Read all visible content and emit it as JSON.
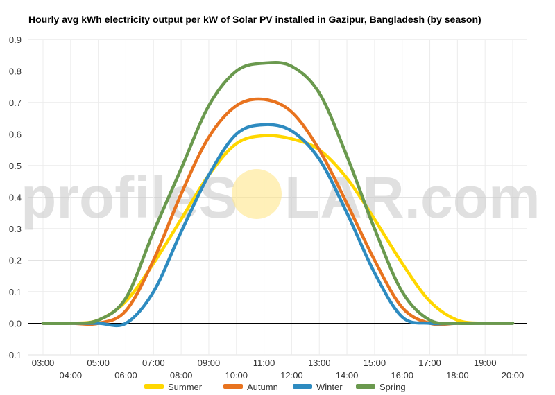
{
  "chart_data": {
    "type": "line",
    "title": "Hourly avg kWh electricity output per kW of Solar PV installed in Gazipur, Bangladesh (by season)",
    "xlabel": "",
    "ylabel": "",
    "categories": [
      "03:00",
      "04:00",
      "05:00",
      "06:00",
      "07:00",
      "08:00",
      "09:00",
      "10:00",
      "11:00",
      "12:00",
      "13:00",
      "14:00",
      "15:00",
      "16:00",
      "17:00",
      "18:00",
      "19:00",
      "20:00"
    ],
    "ylim": [
      -0.1,
      0.9
    ],
    "yticks": [
      -0.1,
      0.0,
      0.1,
      0.2,
      0.3,
      0.4,
      0.5,
      0.6,
      0.7,
      0.8,
      0.9
    ],
    "ytick_labels": [
      "-0.1",
      "0.0",
      "0.1",
      "0.2",
      "0.3",
      "0.4",
      "0.5",
      "0.6",
      "0.7",
      "0.8",
      "0.9"
    ],
    "grid": true,
    "legend_position": "bottom",
    "series": [
      {
        "name": "Summer",
        "color": "#FFD700",
        "values": [
          0,
          0,
          0.01,
          0.07,
          0.19,
          0.33,
          0.47,
          0.57,
          0.595,
          0.585,
          0.55,
          0.46,
          0.33,
          0.19,
          0.07,
          0.01,
          0,
          0
        ]
      },
      {
        "name": "Autumn",
        "color": "#E8731F",
        "values": [
          0,
          0,
          0,
          0.04,
          0.2,
          0.41,
          0.59,
          0.69,
          0.71,
          0.67,
          0.55,
          0.38,
          0.2,
          0.05,
          0,
          0,
          0,
          0
        ]
      },
      {
        "name": "Winter",
        "color": "#2E8BC0",
        "values": [
          0,
          0,
          0,
          0,
          0.1,
          0.29,
          0.47,
          0.6,
          0.63,
          0.61,
          0.52,
          0.35,
          0.16,
          0.02,
          0,
          0,
          0,
          0
        ]
      },
      {
        "name": "Spring",
        "color": "#6A994E",
        "values": [
          0,
          0,
          0.01,
          0.08,
          0.29,
          0.49,
          0.69,
          0.8,
          0.825,
          0.815,
          0.73,
          0.53,
          0.3,
          0.1,
          0.01,
          0,
          0,
          0
        ]
      }
    ]
  },
  "watermark": {
    "prefix": "profileS",
    "suffix": "LAR.com",
    "sun_color": "#FFE68A"
  }
}
